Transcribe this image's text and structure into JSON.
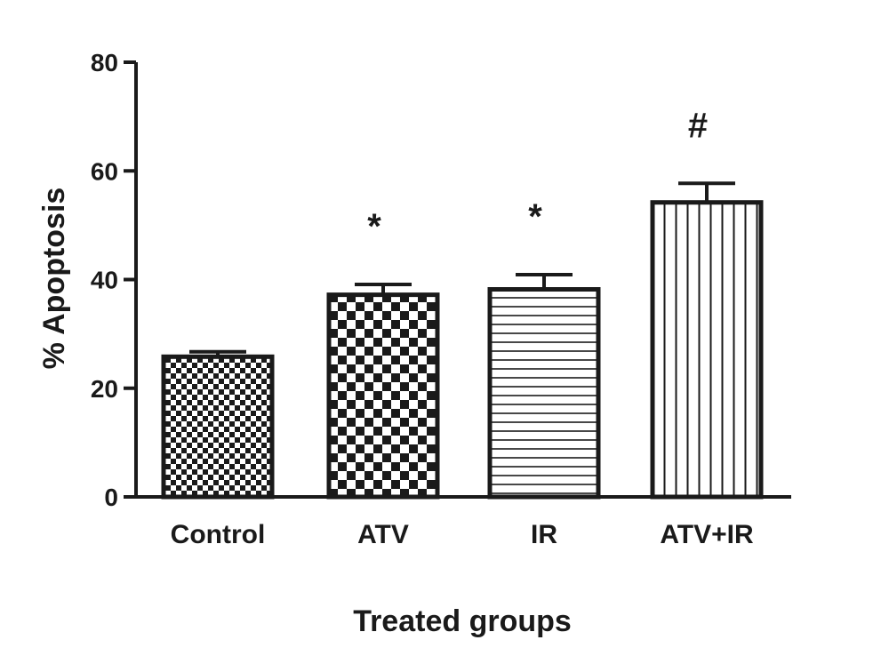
{
  "chart_data": {
    "type": "bar",
    "categories": [
      "Control",
      "ATV",
      "IR",
      "ATV+IR"
    ],
    "values": [
      25.8,
      37.2,
      38.2,
      54.2
    ],
    "errors": [
      0.9,
      1.9,
      2.7,
      3.5
    ],
    "significance": [
      "",
      "*",
      "*",
      "#"
    ],
    "patterns": [
      "fine-checker",
      "checker",
      "horizontal-stripes",
      "vertical-stripes"
    ],
    "xlabel": "Treated groups",
    "ylabel": "% Apoptosis",
    "ylim": [
      0,
      80
    ],
    "yticks": [
      0,
      20,
      40,
      60,
      80
    ],
    "grid": false,
    "colors": {
      "ink": "#1a1a1a",
      "fill": "#ffffff"
    }
  }
}
